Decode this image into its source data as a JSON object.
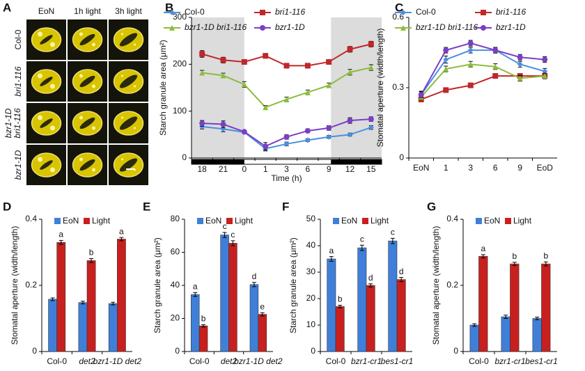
{
  "panel_a": {
    "panel": "A",
    "columns": [
      "EoN",
      "1h light",
      "3h light"
    ],
    "rows": [
      [
        "Col-0"
      ],
      [
        "bri1-116"
      ],
      [
        "bzr1-1D",
        "bri1-116"
      ],
      [
        "bzr1-1D"
      ]
    ]
  },
  "chart_data": [
    {
      "type": "line",
      "panel": "B",
      "y_label": "Starch granule area (μm²)",
      "x_label": "Time (h)",
      "categories": [
        "18",
        "21",
        "0",
        "1",
        "3",
        "6",
        "9",
        "12",
        "15"
      ],
      "ylim": [
        0,
        300
      ],
      "yticks": [
        0,
        100,
        200,
        300
      ],
      "series": [
        {
          "name": "Col-0",
          "italic": false,
          "color": "#4a90e2",
          "marker": "diamond",
          "values": [
            67,
            62,
            55,
            20,
            30,
            38,
            45,
            50,
            65
          ],
          "errors": [
            5,
            6,
            3,
            5,
            4,
            3,
            3,
            3,
            4
          ]
        },
        {
          "name": "bri1-116",
          "italic": true,
          "color": "#c0282a",
          "marker": "square",
          "values": [
            222,
            209,
            205,
            218,
            197,
            197,
            205,
            232,
            243
          ],
          "errors": [
            7,
            6,
            5,
            5,
            5,
            5,
            5,
            6,
            6
          ]
        },
        {
          "name": "bzr1-1D bri1-116",
          "italic": true,
          "color": "#8cbc3c",
          "marker": "triangle",
          "values": [
            182,
            176,
            157,
            108,
            125,
            140,
            155,
            183,
            193
          ],
          "errors": [
            5,
            5,
            6,
            4,
            5,
            5,
            5,
            6,
            6
          ]
        },
        {
          "name": "bzr1-1D",
          "italic": true,
          "color": "#7b3fc6",
          "marker": "circle",
          "values": [
            74,
            72,
            56,
            25,
            45,
            58,
            64,
            80,
            83
          ],
          "errors": [
            6,
            7,
            3,
            8,
            5,
            4,
            5,
            6,
            5
          ]
        }
      ]
    },
    {
      "type": "line",
      "panel": "C",
      "y_label": "Stomatal aperture (width/length)",
      "categories": [
        "EoN",
        "1",
        "3",
        "6",
        "9",
        "EoD"
      ],
      "ylim": [
        0,
        0.6
      ],
      "yticks": [
        0,
        0.3,
        0.6
      ],
      "series": [
        {
          "name": "Col-0",
          "italic": false,
          "color": "#4a90e2",
          "marker": "diamond",
          "values": [
            0.27,
            0.42,
            0.46,
            0.46,
            0.4,
            0.37
          ],
          "errors": [
            0.015,
            0.015,
            0.012,
            0.012,
            0.012,
            0.012
          ]
        },
        {
          "name": "bri1-116",
          "italic": true,
          "color": "#c0282a",
          "marker": "square",
          "values": [
            0.25,
            0.29,
            0.31,
            0.35,
            0.35,
            0.35
          ],
          "errors": [
            0.01,
            0.01,
            0.01,
            0.01,
            0.01,
            0.01
          ]
        },
        {
          "name": "bzr1-1D bri1-116",
          "italic": true,
          "color": "#8cbc3c",
          "marker": "triangle",
          "values": [
            0.26,
            0.38,
            0.4,
            0.39,
            0.34,
            0.35
          ],
          "errors": [
            0.012,
            0.012,
            0.012,
            0.012,
            0.012,
            0.012
          ]
        },
        {
          "name": "bzr1-1D",
          "italic": true,
          "color": "#7b3fc6",
          "marker": "circle",
          "values": [
            0.27,
            0.46,
            0.49,
            0.46,
            0.43,
            0.42
          ],
          "errors": [
            0.012,
            0.012,
            0.012,
            0.012,
            0.012,
            0.012
          ]
        }
      ]
    },
    {
      "type": "bar",
      "panel": "D",
      "y_label": "Stomatal aperture (width/length)",
      "categories": [
        "Col-0",
        "det2",
        "bzr1-1D det2"
      ],
      "category_italic": [
        false,
        true,
        true
      ],
      "ylim": [
        0,
        0.4
      ],
      "yticks": [
        0,
        0.2,
        0.4
      ],
      "series": [
        {
          "name": "EoN",
          "color": "#3f7fd9",
          "values": [
            0.158,
            0.148,
            0.145
          ],
          "errors": [
            0.004,
            0.004,
            0.004
          ]
        },
        {
          "name": "Light",
          "color": "#c8201e",
          "values": [
            0.33,
            0.275,
            0.34
          ],
          "errors": [
            0.006,
            0.006,
            0.005
          ],
          "letters": [
            "a",
            "b",
            "a"
          ]
        }
      ]
    },
    {
      "type": "bar",
      "panel": "E",
      "y_label": "Starch granule area (μm²)",
      "categories": [
        "Col-0",
        "det2",
        "bzr1-1D det2"
      ],
      "category_italic": [
        false,
        true,
        true
      ],
      "ylim": [
        0,
        80
      ],
      "yticks": [
        0,
        20,
        40,
        60,
        80
      ],
      "series": [
        {
          "name": "EoN",
          "color": "#3f7fd9",
          "values": [
            34.5,
            70.5,
            40.5
          ],
          "errors": [
            1.2,
            1.5,
            1.3
          ],
          "letters": [
            "a",
            "c",
            "d"
          ]
        },
        {
          "name": "Light",
          "color": "#c8201e",
          "values": [
            15.5,
            65.5,
            22.5
          ],
          "errors": [
            0.7,
            1.5,
            1.0
          ],
          "letters": [
            "b",
            "c",
            "e"
          ]
        }
      ]
    },
    {
      "type": "bar",
      "panel": "F",
      "y_label": "Starch granule area (μm²)",
      "categories": [
        "Col-0",
        "bzr1-cr1",
        "bes1-cr1"
      ],
      "category_italic": [
        false,
        true,
        true
      ],
      "ylim": [
        0,
        50
      ],
      "yticks": [
        0,
        10,
        20,
        30,
        40,
        50
      ],
      "series": [
        {
          "name": "EoN",
          "color": "#3f7fd9",
          "values": [
            35,
            39.2,
            41.8
          ],
          "errors": [
            0.9,
            1.0,
            1.0
          ],
          "letters": [
            "a",
            "c",
            "c"
          ]
        },
        {
          "name": "Light",
          "color": "#c8201e",
          "values": [
            17,
            25,
            27.2
          ],
          "errors": [
            0.5,
            0.6,
            0.8
          ],
          "letters": [
            "b",
            "d",
            "d"
          ]
        }
      ]
    },
    {
      "type": "bar",
      "panel": "G",
      "y_label": "Stomatal aperture (width/length)",
      "categories": [
        "Col-0",
        "bzr1-cr1",
        "bes1-cr1"
      ],
      "category_italic": [
        false,
        true,
        true
      ],
      "ylim": [
        0,
        0.4
      ],
      "yticks": [
        0,
        0.2,
        0.4
      ],
      "series": [
        {
          "name": "EoN",
          "color": "#3f7fd9",
          "values": [
            0.08,
            0.105,
            0.1
          ],
          "errors": [
            0.004,
            0.005,
            0.004
          ]
        },
        {
          "name": "Light",
          "color": "#c8201e",
          "values": [
            0.288,
            0.265,
            0.265
          ],
          "errors": [
            0.005,
            0.005,
            0.006
          ],
          "letters": [
            "a",
            "b",
            "b"
          ]
        }
      ]
    }
  ]
}
